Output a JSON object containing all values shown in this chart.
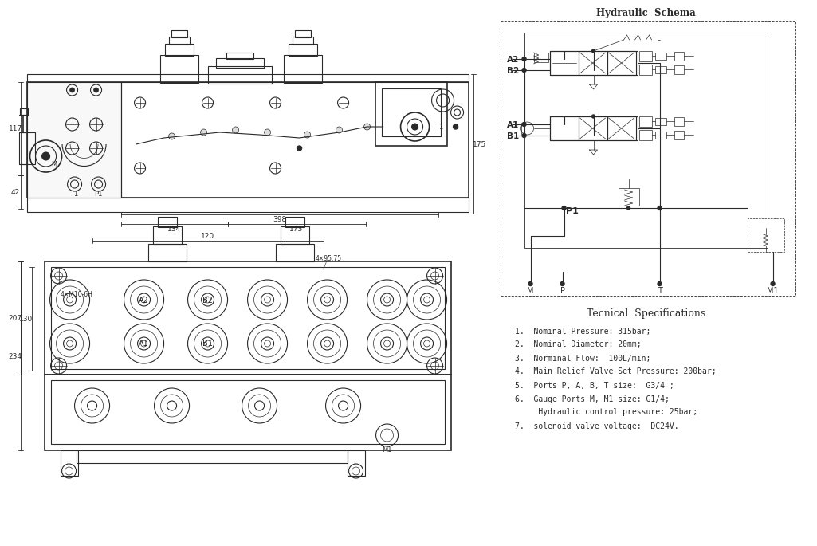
{
  "title": "Hydraulic  Schema",
  "bg_color": "#ffffff",
  "line_color": "#2a2a2a",
  "specs_title": "Tecnical  Specifications",
  "specs": [
    "1.  Nominal Pressure: 315bar;",
    "2.  Nominal Diameter: 20mm;",
    "3.  Norminal Flow:  100L/min;",
    "4.  Main Relief Valve Set Pressure: 200bar;",
    "5.  Ports P, A, B, T size:  G3/4 ;",
    "6.  Gauge Ports M, M1 size: G1/4;",
    "     Hydraulic control pressure: 25bar;",
    "7.  solenoid valve voltage:  DC24V."
  ],
  "top_dims": {
    "d134": "134",
    "d173": "173",
    "d398": "398",
    "d117": "117",
    "d42": "42",
    "d175": "175"
  },
  "bot_dims": {
    "d120": "120",
    "d207": "207",
    "d130": "130",
    "d234": "234",
    "d4M": "4×M10-6H",
    "d4x": "4×95.75"
  }
}
